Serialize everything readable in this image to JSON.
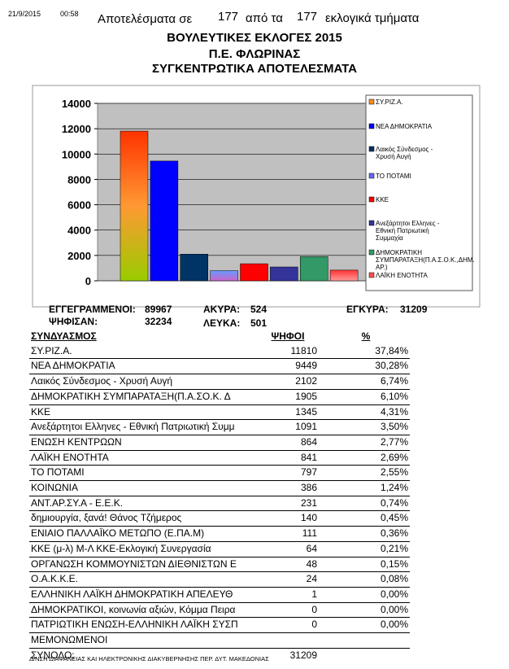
{
  "header": {
    "date": "21/9/2015",
    "time": "00:58",
    "results_prefix": "Αποτελέσματα σε",
    "counted": "177",
    "from_label": "από τα",
    "total_stations": "177",
    "stations_label": "εκλογικά τμήματα",
    "title1": "ΒΟΥΛΕΥΤΙΚΕΣ ΕΚΛΟΓΕΣ 2015",
    "title2": "Π.Ε. ΦΛΩΡΙΝΑΣ",
    "title3": "ΣΥΓΚΕΝΤΡΩΤΙΚΑ ΑΠΟΤΕΛΕΣΜΑΤΑ"
  },
  "chart_data": {
    "type": "bar",
    "ylim": [
      0,
      14000
    ],
    "yticks": [
      "0",
      "2000",
      "4000",
      "6000",
      "8000",
      "10000",
      "12000",
      "14000"
    ],
    "grid": true,
    "legend_position": "right",
    "series": [
      {
        "name": "ΣΥ.ΡΙΖ.Α.",
        "value": 11810,
        "color": "#ff8a1a"
      },
      {
        "name": "ΝΕΑ ΔΗΜΟΚΡΑΤΙΑ",
        "value": 9449,
        "color": "#0000ff"
      },
      {
        "name": "Λαικός Σύνδεσμος - Χρυσή Αυγή",
        "value": 2102,
        "color": "#003366"
      },
      {
        "name": "ΤΟ ΠΟΤΑΜΙ",
        "value": 797,
        "color": "#6666ff"
      },
      {
        "name": "ΚΚΕ",
        "value": 1345,
        "color": "#ff0000"
      },
      {
        "name": "Ανεξάρτητοι Ελληνες - Εθνική Πατριωτική Συμμαχία",
        "value": 1091,
        "color": "#333399"
      },
      {
        "name": "ΔΗΜΟΚΡΑΤΙΚΗ ΣΥΜΠΑΡΑΤΑΞΗ(Π.Α.Σ.Ο.Κ.,ΔΗΜ. ΑΡ.)",
        "value": 1905,
        "color": "#339966"
      },
      {
        "name": "ΛΑΪΚΗ ΕΝΟΤΗΤΑ",
        "value": 841,
        "color": "#ff5050"
      }
    ]
  },
  "stats": {
    "registered_label": "ΕΓΓΕΓΡΑΜΜΕΝΟΙ:",
    "registered": "89967",
    "voted_label": "ΨΗΦΙΣΑΝ:",
    "voted": "32234",
    "invalid_label": "ΑΚΥΡΑ:",
    "invalid": "524",
    "blank_label": "ΛΕΥΚΑ:",
    "blank": "501",
    "valid_label": "ΕΓΚΥΡΑ:",
    "valid": "31209"
  },
  "table": {
    "headers": [
      "ΣΥΝΔΥΑΣΜΟΣ",
      "ΨΗΦΟΙ",
      "%"
    ],
    "rows": [
      [
        "ΣΥ.ΡΙΖ.Α.",
        "11810",
        "37,84%"
      ],
      [
        "ΝΕΑ ΔΗΜΟΚΡΑΤΙΑ",
        "9449",
        "30,28%"
      ],
      [
        "Λαικός Σύνδεσμος - Χρυσή Αυγή",
        "2102",
        "6,74%"
      ],
      [
        "ΔΗΜΟΚΡΑΤΙΚΗ ΣΥΜΠΑΡΑΤΑΞΗ(Π.Α.ΣΟ.Κ. Δ",
        "1905",
        "6,10%"
      ],
      [
        "ΚΚΕ",
        "1345",
        "4,31%"
      ],
      [
        "Ανεξάρτητοι Ελληνες - Εθνική Πατριωτική Συμμ",
        "1091",
        "3,50%"
      ],
      [
        "ΕΝΩΣΗ ΚΕΝΤΡΩΩΝ",
        "864",
        "2,77%"
      ],
      [
        "ΛΑΪΚΗ ΕΝΟΤΗΤΑ",
        "841",
        "2,69%"
      ],
      [
        "ΤΟ ΠΟΤΑΜΙ",
        "797",
        "2,55%"
      ],
      [
        "ΚΟΙΝΩΝΙΑ",
        "386",
        "1,24%"
      ],
      [
        "ΑΝΤ.ΑΡ.ΣΥ.Α - Ε.Ε.Κ.",
        "231",
        "0,74%"
      ],
      [
        "δημιουργία, ξανά! Θάνος Τζήμερος",
        "140",
        "0,45%"
      ],
      [
        "ΕΝΙΑΙΟ ΠΑΛΛΑΪΚΟ ΜΕΤΩΠΟ (Ε.ΠΑ.Μ)",
        "111",
        "0,36%"
      ],
      [
        "ΚΚΕ (μ-λ) Μ-Λ ΚΚΕ-Εκλογική Συνεργασία",
        "64",
        "0,21%"
      ],
      [
        "ΟΡΓΑΝΩΣΗ ΚΟΜΜΟΥΝΙΣΤΩΝ ΔΙΕΘΝΙΣΤΩΝ Ε",
        "48",
        "0,15%"
      ],
      [
        "Ο.Α.Κ.Κ.Ε.",
        "24",
        "0,08%"
      ],
      [
        "ΕΛΛΗΝΙΚΗ ΛΑΪΚΗ ΔΗΜΟΚΡΑΤΙΚΗ ΑΠΕΛΕΥΘ",
        "1",
        "0,00%"
      ],
      [
        "ΔΗΜΟΚΡΑΤΙΚΟΙ, κοινωνία αξιών, Κόμμα Πειρα",
        "0",
        "0,00%"
      ],
      [
        "ΠΑΤΡΙΩΤΙΚΗ ΕΝΩΣΗ-ΕΛΛΗΝΙΚΗ ΛΑΪΚΗ ΣΥΣΠ",
        "0",
        "0,00%"
      ],
      [
        "ΜΕΜΟΝΩΜΕΝΟΙ",
        "",
        ""
      ]
    ],
    "total_label": "ΣΥΝΟΛΟ:",
    "total": "31209"
  },
  "footer": "Δ/ΝΣΗ ΔΙΑΦΑΝΕΙΑΣ ΚΑΙ ΗΛΕΚΤΡΟΝΙΚΗΣ ΔΙΑΚΥΒΕΡΝΗΣΗΣ ΠΕΡ. ΔΥΤ. ΜΑΚΕΔΟΝΙΑΣ"
}
